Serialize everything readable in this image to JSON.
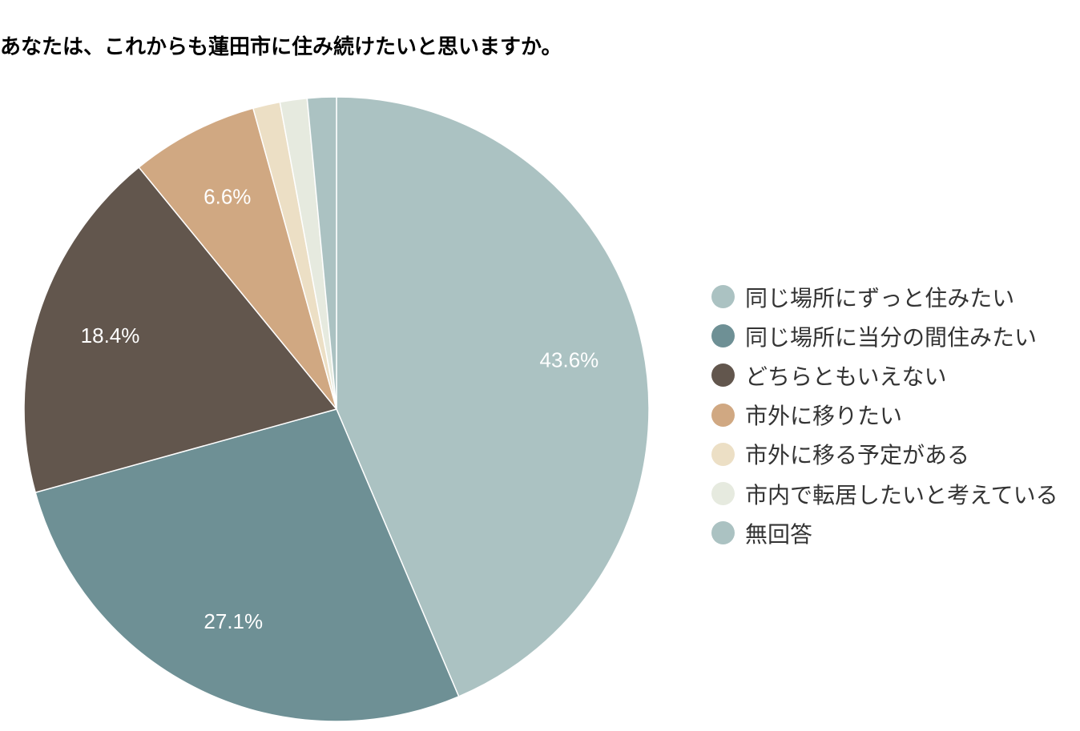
{
  "chart_data": {
    "type": "pie",
    "title": "あなたは、これからも蓮田市に住み続けたいと思いますか。",
    "slices": [
      {
        "label": "同じ場所にずっと住みたい",
        "value": 43.6,
        "color": "#abc2c2",
        "value_label": "43.6%"
      },
      {
        "label": "同じ場所に当分の間住みたい",
        "value": 27.1,
        "color": "#6e9095",
        "value_label": "27.1%"
      },
      {
        "label": "どちらともいえない",
        "value": 18.4,
        "color": "#62564d",
        "value_label": "18.4%"
      },
      {
        "label": "市外に移りたい",
        "value": 6.6,
        "color": "#d0a882",
        "value_label": "6.6%"
      },
      {
        "label": "市外に移る予定がある",
        "value": 1.4,
        "color": "#ecdfc5",
        "value_label": ""
      },
      {
        "label": "市内で転居したいと考えている",
        "value": 1.4,
        "color": "#e6eadf",
        "value_label": ""
      },
      {
        "label": "無回答",
        "value": 1.5,
        "color": "#abc2c2",
        "value_label": ""
      }
    ],
    "legend_position": "right"
  }
}
